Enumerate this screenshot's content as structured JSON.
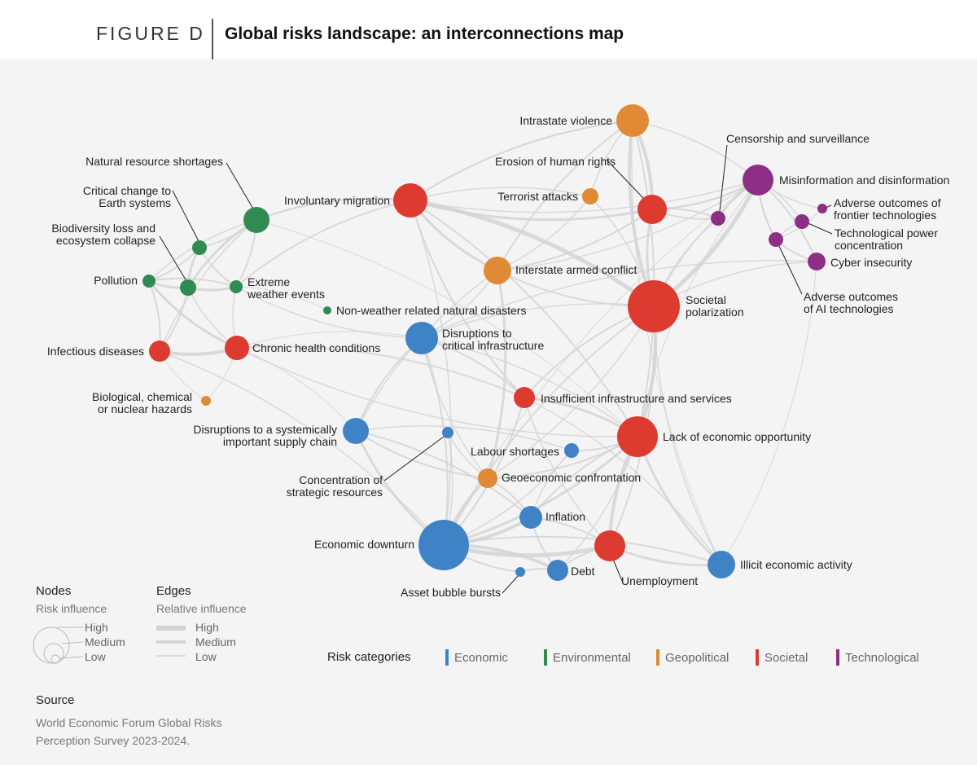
{
  "header": {
    "figure_label": "FIGURE D",
    "title": "Global risks landscape: an interconnections map"
  },
  "colors": {
    "economic": "#3f83c6",
    "environmental": "#2f8b50",
    "geopolitical": "#e08a35",
    "societal": "#dd3b30",
    "technological": "#8c2f85"
  },
  "nodes": [
    {
      "id": "intrastate",
      "label": [
        "Intrastate violence"
      ],
      "cat": "geopolitical",
      "r": 20
    },
    {
      "id": "censorship",
      "label": [
        "Censorship and surveillance"
      ],
      "cat": "technological",
      "r": 9
    },
    {
      "id": "misinfo",
      "label": [
        "Misinformation and disinformation"
      ],
      "cat": "technological",
      "r": 19
    },
    {
      "id": "erosion",
      "label": [
        "Erosion of human rights"
      ],
      "cat": "societal",
      "r": 18
    },
    {
      "id": "terrorist",
      "label": [
        "Terrorist attacks"
      ],
      "cat": "geopolitical",
      "r": 10
    },
    {
      "id": "involuntary",
      "label": [
        "Involuntary migration"
      ],
      "cat": "societal",
      "r": 21
    },
    {
      "id": "frontier",
      "label": [
        "Adverse outcomes of",
        "frontier technologies"
      ],
      "cat": "technological",
      "r": 6
    },
    {
      "id": "techpower",
      "label": [
        "Technological power",
        "concentration"
      ],
      "cat": "technological",
      "r": 9
    },
    {
      "id": "aioutcomes",
      "label": [
        "Adverse outcomes",
        "of AI technologies"
      ],
      "cat": "technological",
      "r": 9
    },
    {
      "id": "cyber",
      "label": [
        "Cyber insecurity"
      ],
      "cat": "technological",
      "r": 11
    },
    {
      "id": "interstate",
      "label": [
        "Interstate armed conflict"
      ],
      "cat": "geopolitical",
      "r": 17
    },
    {
      "id": "polarization",
      "label": [
        "Societal",
        "polarization"
      ],
      "cat": "societal",
      "r": 32
    },
    {
      "id": "resources",
      "label": [
        "Natural resource shortages"
      ],
      "cat": "environmental",
      "r": 16
    },
    {
      "id": "earth",
      "label": [
        "Critical change to",
        "Earth systems"
      ],
      "cat": "environmental",
      "r": 9
    },
    {
      "id": "biodiversity",
      "label": [
        "Biodiversity loss and",
        "ecosystem collapse"
      ],
      "cat": "environmental",
      "r": 10
    },
    {
      "id": "pollution",
      "label": [
        "Pollution"
      ],
      "cat": "environmental",
      "r": 8
    },
    {
      "id": "extreme",
      "label": [
        "Extreme",
        "weather events"
      ],
      "cat": "environmental",
      "r": 8
    },
    {
      "id": "nonweather",
      "label": [
        "Non-weather related natural disasters"
      ],
      "cat": "environmental",
      "r": 5
    },
    {
      "id": "infectious",
      "label": [
        "Infectious diseases"
      ],
      "cat": "societal",
      "r": 13
    },
    {
      "id": "chronic",
      "label": [
        "Chronic health conditions"
      ],
      "cat": "societal",
      "r": 15
    },
    {
      "id": "critinfra",
      "label": [
        "Disruptions to",
        "critical infrastructure"
      ],
      "cat": "economic",
      "r": 20
    },
    {
      "id": "biohazards",
      "label": [
        "Biological, chemical",
        "or nuclear hazards"
      ],
      "cat": "geopolitical",
      "r": 6
    },
    {
      "id": "insufficient",
      "label": [
        "Insufficient infrastructure and services"
      ],
      "cat": "societal",
      "r": 13
    },
    {
      "id": "supplychain",
      "label": [
        "Disruptions to a systemically",
        "important supply chain"
      ],
      "cat": "economic",
      "r": 16
    },
    {
      "id": "concentration",
      "label": [
        "Concentration of",
        "strategic resources"
      ],
      "cat": "economic",
      "r": 7
    },
    {
      "id": "lackopp",
      "label": [
        "Lack of economic opportunity"
      ],
      "cat": "societal",
      "r": 25
    },
    {
      "id": "labour",
      "label": [
        "Labour shortages"
      ],
      "cat": "economic",
      "r": 9
    },
    {
      "id": "geoeconomic",
      "label": [
        "Geoeconomic confrontation"
      ],
      "cat": "geopolitical",
      "r": 12
    },
    {
      "id": "inflation",
      "label": [
        "Inflation"
      ],
      "cat": "economic",
      "r": 14
    },
    {
      "id": "downturn",
      "label": [
        "Economic downturn"
      ],
      "cat": "economic",
      "r": 31
    },
    {
      "id": "unemployment",
      "label": [
        "Unemployment"
      ],
      "cat": "societal",
      "r": 19
    },
    {
      "id": "debt",
      "label": [
        "Debt"
      ],
      "cat": "economic",
      "r": 13
    },
    {
      "id": "illicit",
      "label": [
        "Illicit economic activity"
      ],
      "cat": "economic",
      "r": 17
    },
    {
      "id": "bubble",
      "label": [
        "Asset bubble bursts"
      ],
      "cat": "economic",
      "r": 6
    }
  ],
  "legend": {
    "nodes_title": "Nodes",
    "nodes_sub": "Risk influence",
    "edges_title": "Edges",
    "edges_sub": "Relative influence",
    "levels": [
      "High",
      "Medium",
      "Low"
    ]
  },
  "categories": {
    "title": "Risk categories",
    "items": [
      {
        "label": "Economic",
        "key": "economic"
      },
      {
        "label": "Environmental",
        "key": "environmental"
      },
      {
        "label": "Geopolitical",
        "key": "geopolitical"
      },
      {
        "label": "Societal",
        "key": "societal"
      },
      {
        "label": "Technological",
        "key": "technological"
      }
    ]
  },
  "source": {
    "title": "Source",
    "lines": [
      "World Economic Forum Global Risks",
      "Perception Survey 2023-2024."
    ]
  }
}
